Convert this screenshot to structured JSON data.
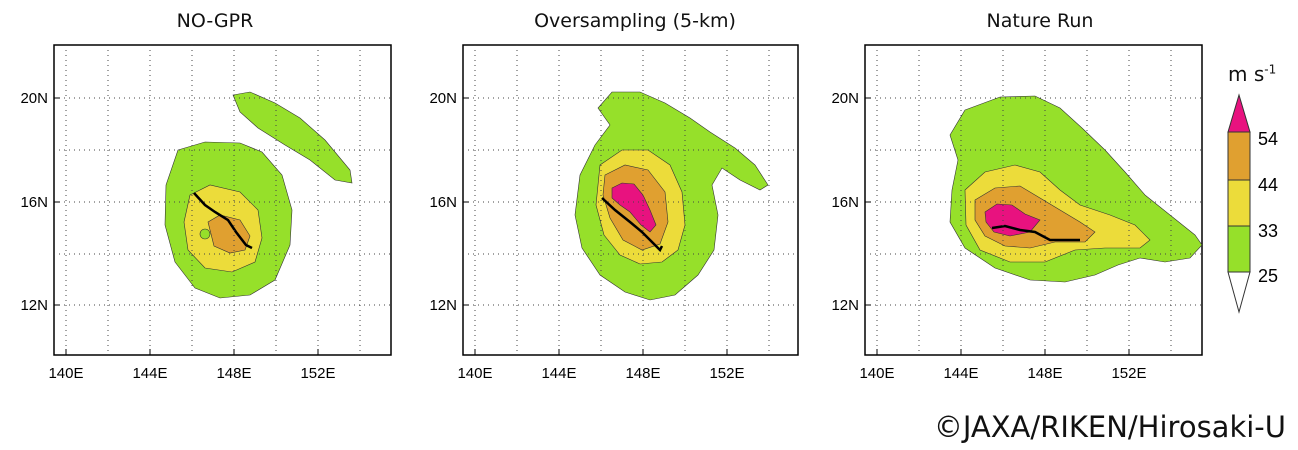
{
  "panels": [
    {
      "title": "NO-GPR"
    },
    {
      "title": "Oversampling (5-km)"
    },
    {
      "title": "Nature Run"
    }
  ],
  "axes": {
    "x_ticks": [
      "140E",
      "144E",
      "148E",
      "152E"
    ],
    "y_ticks": [
      "20N",
      "16N",
      "12N"
    ]
  },
  "colorbar": {
    "unit": "m s",
    "unit_exp": "-1",
    "levels": [
      "54",
      "44",
      "33",
      "25"
    ],
    "colors": {
      "ge54": "#e8127f",
      "44_54": "#e0a030",
      "33_44": "#ecdc3a",
      "25_33": "#96e02a",
      "lt25": "#ffffff"
    }
  },
  "credit": "©JAXA/RIKEN/Hirosaki-U"
}
